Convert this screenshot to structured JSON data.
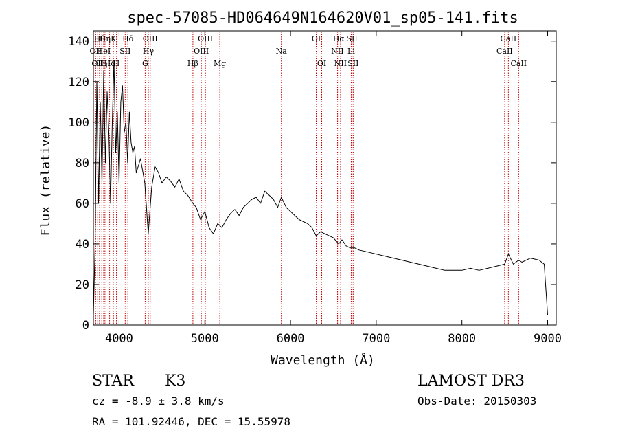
{
  "chart_data": {
    "type": "line",
    "title": "spec-57085-HD064649N164620V01_sp05-141.fits",
    "xlabel": "Wavelength (Å)",
    "ylabel": "Flux (relative)",
    "xlim": [
      3700,
      9100
    ],
    "ylim": [
      0,
      145
    ],
    "x_ticks": [
      4000,
      5000,
      6000,
      7000,
      8000,
      9000
    ],
    "y_ticks": [
      0,
      20,
      40,
      60,
      80,
      100,
      120,
      140
    ],
    "grid": false,
    "series": [
      {
        "name": "flux",
        "x": [
          3700,
          3720,
          3740,
          3760,
          3780,
          3800,
          3820,
          3840,
          3860,
          3880,
          3900,
          3920,
          3940,
          3960,
          3980,
          4000,
          4020,
          4040,
          4060,
          4080,
          4100,
          4120,
          4140,
          4160,
          4180,
          4200,
          4250,
          4300,
          4340,
          4380,
          4420,
          4460,
          4500,
          4550,
          4600,
          4650,
          4700,
          4750,
          4800,
          4861,
          4900,
          4950,
          5000,
          5050,
          5100,
          5150,
          5200,
          5250,
          5300,
          5350,
          5400,
          5450,
          5500,
          5550,
          5600,
          5650,
          5700,
          5750,
          5800,
          5850,
          5893,
          5950,
          6000,
          6050,
          6100,
          6150,
          6200,
          6250,
          6300,
          6350,
          6400,
          6450,
          6500,
          6563,
          6600,
          6650,
          6700,
          6750,
          6800,
          6900,
          7000,
          7100,
          7200,
          7300,
          7400,
          7500,
          7600,
          7700,
          7800,
          7900,
          8000,
          8100,
          8200,
          8300,
          8400,
          8498,
          8542,
          8600,
          8662,
          8700,
          8800,
          8900,
          8960,
          9000
        ],
        "y": [
          5,
          40,
          120,
          60,
          110,
          70,
          125,
          80,
          115,
          95,
          60,
          100,
          130,
          85,
          105,
          70,
          110,
          118,
          95,
          100,
          80,
          105,
          90,
          85,
          88,
          75,
          82,
          70,
          45,
          68,
          78,
          75,
          70,
          73,
          71,
          68,
          72,
          66,
          64,
          60,
          58,
          52,
          56,
          48,
          45,
          50,
          48,
          52,
          55,
          57,
          54,
          58,
          60,
          62,
          63,
          60,
          66,
          64,
          62,
          58,
          63,
          58,
          56,
          54,
          52,
          51,
          50,
          48,
          44,
          46,
          45,
          44,
          43,
          40,
          42,
          39,
          38,
          38,
          37,
          36,
          35,
          34,
          33,
          32,
          31,
          30,
          29,
          28,
          27,
          27,
          27,
          28,
          27,
          28,
          29,
          30,
          35,
          30,
          32,
          31,
          33,
          32,
          30,
          5
        ]
      }
    ],
    "lines": [
      {
        "wave": 3727,
        "label": "OII",
        "row": 2
      },
      {
        "wave": 3750,
        "label": "OII",
        "row": 3
      },
      {
        "wave": 3771,
        "label": "Hθ",
        "row": 1
      },
      {
        "wave": 3798,
        "label": "Hη",
        "row": 3
      },
      {
        "wave": 3820,
        "label": "HeI",
        "row": 2
      },
      {
        "wave": 3835,
        "label": "Hη",
        "row": 1
      },
      {
        "wave": 3889,
        "label": "Hζ",
        "row": 3
      },
      {
        "wave": 3934,
        "label": "K",
        "row": 1
      },
      {
        "wave": 3969,
        "label": "H",
        "row": 3
      },
      {
        "wave": 4071,
        "label": "SII",
        "row": 2
      },
      {
        "wave": 4102,
        "label": "Hδ",
        "row": 1
      },
      {
        "wave": 4304,
        "label": "G",
        "row": 3
      },
      {
        "wave": 4341,
        "label": "Hγ",
        "row": 2
      },
      {
        "wave": 4363,
        "label": "OIII",
        "row": 1
      },
      {
        "wave": 4861,
        "label": "Hβ",
        "row": 3
      },
      {
        "wave": 4959,
        "label": "OIII",
        "row": 2
      },
      {
        "wave": 5007,
        "label": "OIII",
        "row": 1
      },
      {
        "wave": 5175,
        "label": "Mg",
        "row": 3
      },
      {
        "wave": 5893,
        "label": "Na",
        "row": 2
      },
      {
        "wave": 6300,
        "label": "OI",
        "row": 1
      },
      {
        "wave": 6364,
        "label": "OI",
        "row": 3
      },
      {
        "wave": 6548,
        "label": "NII",
        "row": 2
      },
      {
        "wave": 6563,
        "label": "Hα",
        "row": 1
      },
      {
        "wave": 6584,
        "label": "NII",
        "row": 3
      },
      {
        "wave": 6708,
        "label": "Li",
        "row": 2
      },
      {
        "wave": 6717,
        "label": "SII",
        "row": 1
      },
      {
        "wave": 6731,
        "label": "SII",
        "row": 3
      },
      {
        "wave": 8498,
        "label": "CaII",
        "row": 2
      },
      {
        "wave": 8542,
        "label": "CaII",
        "row": 1
      },
      {
        "wave": 8662,
        "label": "CaII",
        "row": 3
      }
    ]
  },
  "info": {
    "object_class": "STAR",
    "subclass": "K3",
    "survey": "LAMOST DR3",
    "redshift": "cz = -8.9 ± 3.8 km/s",
    "obs_date": "Obs-Date: 20150303",
    "coords": "RA = 101.92446, DEC =  15.55978"
  }
}
